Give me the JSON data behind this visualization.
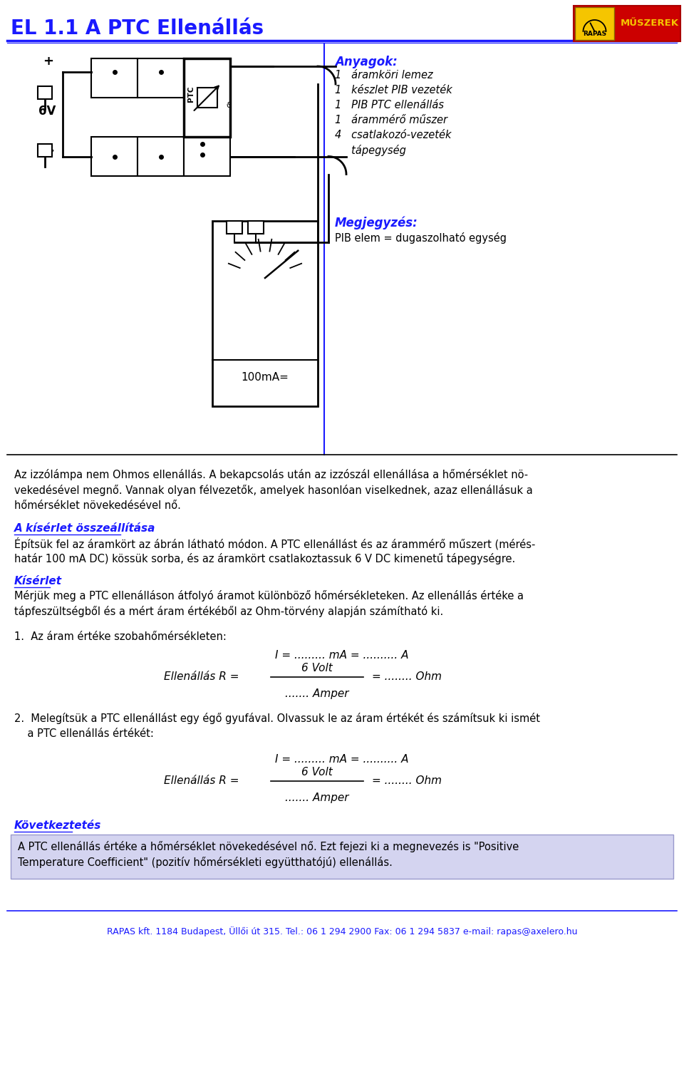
{
  "title": "EL 1.1 A PTC Ellenállás",
  "title_color": "#1a1aff",
  "title_fontsize": 20,
  "bg_color": "#ffffff",
  "header_line_color": "#1a1aff",
  "materials_title": "Anyagok:",
  "materials_title_color": "#1a1aff",
  "materials": [
    "1   áramköri lemez",
    "1   készlet PIB vezeték",
    "1   PIB PTC ellenállás",
    "1   árammérő műszer",
    "4   csatlakozó-vezeték",
    "     tápegység"
  ],
  "note_title": "Megjegyzés:",
  "note_title_color": "#1a1aff",
  "note_text": "PIB elem = dugaszolható egység",
  "section1_title": "A kísérlet összeállítása",
  "section1_color": "#1a1aff",
  "section2_title": "Kísérlet",
  "section2_color": "#1a1aff",
  "item1_text": "1.  Az áram értéke szobahőmérsékleten:",
  "formula1_I": "I = ......... mA = .......... A",
  "formula1_R_label": "Ellenállás R =",
  "formula1_R_num": "6 Volt",
  "formula1_R_den": "....... Amper",
  "formula1_R_eq": "= ........ Ohm",
  "item2_lines": [
    "2.  Melegítsük a PTC ellenállást egy égő gyufával. Olvassuk le az áram értékét és számítsuk ki ismét",
    "    a PTC ellenállás értékét:"
  ],
  "formula2_I": "I = ......... mA = .......... A",
  "formula2_R_label": "Ellenállás R =",
  "formula2_R_num": "6 Volt",
  "formula2_R_den": "....... Amper",
  "formula2_R_eq": "= ........ Ohm",
  "section3_title": "Következtetés",
  "section3_color": "#1a1aff",
  "conclusion_lines": [
    "A PTC ellenállás értéke a hőmérséklet növekedésével nő. Ezt fejezi ki a megnevezés is \"Positive",
    "Temperature Coefficient\" (pozitív hőmérsékleti együtthatójú) ellenállás."
  ],
  "conclusion_bg": "#d4d4f0",
  "footer_text": "RAPAS kft. 1184 Budapest, Üllői út 315. Tel.: 06 1 294 2900 Fax: 06 1 294 5837 e-mail: rapas@axelero.hu",
  "footer_color": "#1a1aff",
  "intro_lines": [
    "Az izzólámpa nem Ohmos ellenállás. A bekapcsolás után az izzószál ellenállása a hőmérséklet nö-",
    "vekedésével megnő. Vannak olyan félvezetők, amelyek hasonlóan viselkednek, azaz ellenállásuk a",
    "hőmérséklet növekedésével nő."
  ],
  "sec1_lines": [
    "Építsük fel az áramkört az ábrán látható módon. A PTC ellenállást és az árammérő műszert (mérés-",
    "határ 100 mA DC) kössük sorba, és az áramkört csatlakoztassuk 6 V DC kimenetű tápegységre."
  ],
  "sec2_lines": [
    "Mérjük meg a PTC ellenálláson átfolyó áramot különböző hőmérsékleteken. Az ellenállás értéke a",
    "tápfeszültségből és a mért áram értékéből az Ohm-törvény alapján számítható ki."
  ]
}
